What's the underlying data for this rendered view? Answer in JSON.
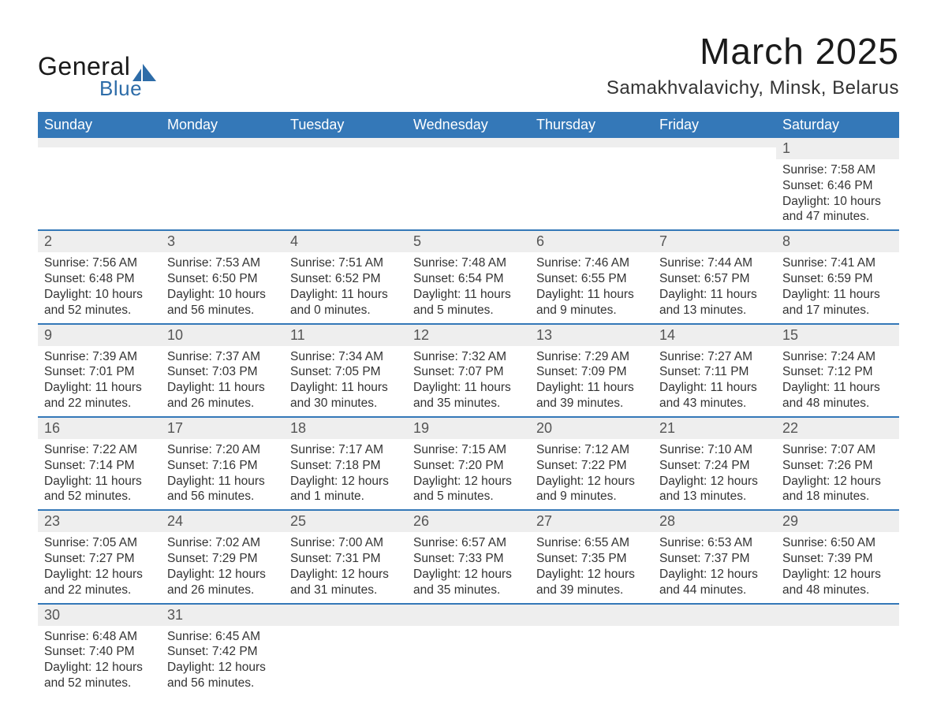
{
  "branding": {
    "word1": "General",
    "word2": "Blue",
    "accent_color": "#2d6ca8"
  },
  "header": {
    "month_title": "March 2025",
    "location": "Samakhvalavichy, Minsk, Belarus"
  },
  "calendar": {
    "type": "table",
    "columns": [
      "Sunday",
      "Monday",
      "Tuesday",
      "Wednesday",
      "Thursday",
      "Friday",
      "Saturday"
    ],
    "header_bg": "#3478b8",
    "header_text_color": "#ffffff",
    "strip_bg": "#eeeeee",
    "row_border_color": "#3478b8",
    "body_text_color": "#333333",
    "daynum_text_color": "#555555",
    "header_fontsize": 18,
    "daynum_fontsize": 18,
    "body_fontsize": 15.5,
    "weeks": [
      [
        null,
        null,
        null,
        null,
        null,
        null,
        {
          "d": "1",
          "sunrise": "Sunrise: 7:58 AM",
          "sunset": "Sunset: 6:46 PM",
          "day1": "Daylight: 10 hours",
          "day2": "and 47 minutes."
        }
      ],
      [
        {
          "d": "2",
          "sunrise": "Sunrise: 7:56 AM",
          "sunset": "Sunset: 6:48 PM",
          "day1": "Daylight: 10 hours",
          "day2": "and 52 minutes."
        },
        {
          "d": "3",
          "sunrise": "Sunrise: 7:53 AM",
          "sunset": "Sunset: 6:50 PM",
          "day1": "Daylight: 10 hours",
          "day2": "and 56 minutes."
        },
        {
          "d": "4",
          "sunrise": "Sunrise: 7:51 AM",
          "sunset": "Sunset: 6:52 PM",
          "day1": "Daylight: 11 hours",
          "day2": "and 0 minutes."
        },
        {
          "d": "5",
          "sunrise": "Sunrise: 7:48 AM",
          "sunset": "Sunset: 6:54 PM",
          "day1": "Daylight: 11 hours",
          "day2": "and 5 minutes."
        },
        {
          "d": "6",
          "sunrise": "Sunrise: 7:46 AM",
          "sunset": "Sunset: 6:55 PM",
          "day1": "Daylight: 11 hours",
          "day2": "and 9 minutes."
        },
        {
          "d": "7",
          "sunrise": "Sunrise: 7:44 AM",
          "sunset": "Sunset: 6:57 PM",
          "day1": "Daylight: 11 hours",
          "day2": "and 13 minutes."
        },
        {
          "d": "8",
          "sunrise": "Sunrise: 7:41 AM",
          "sunset": "Sunset: 6:59 PM",
          "day1": "Daylight: 11 hours",
          "day2": "and 17 minutes."
        }
      ],
      [
        {
          "d": "9",
          "sunrise": "Sunrise: 7:39 AM",
          "sunset": "Sunset: 7:01 PM",
          "day1": "Daylight: 11 hours",
          "day2": "and 22 minutes."
        },
        {
          "d": "10",
          "sunrise": "Sunrise: 7:37 AM",
          "sunset": "Sunset: 7:03 PM",
          "day1": "Daylight: 11 hours",
          "day2": "and 26 minutes."
        },
        {
          "d": "11",
          "sunrise": "Sunrise: 7:34 AM",
          "sunset": "Sunset: 7:05 PM",
          "day1": "Daylight: 11 hours",
          "day2": "and 30 minutes."
        },
        {
          "d": "12",
          "sunrise": "Sunrise: 7:32 AM",
          "sunset": "Sunset: 7:07 PM",
          "day1": "Daylight: 11 hours",
          "day2": "and 35 minutes."
        },
        {
          "d": "13",
          "sunrise": "Sunrise: 7:29 AM",
          "sunset": "Sunset: 7:09 PM",
          "day1": "Daylight: 11 hours",
          "day2": "and 39 minutes."
        },
        {
          "d": "14",
          "sunrise": "Sunrise: 7:27 AM",
          "sunset": "Sunset: 7:11 PM",
          "day1": "Daylight: 11 hours",
          "day2": "and 43 minutes."
        },
        {
          "d": "15",
          "sunrise": "Sunrise: 7:24 AM",
          "sunset": "Sunset: 7:12 PM",
          "day1": "Daylight: 11 hours",
          "day2": "and 48 minutes."
        }
      ],
      [
        {
          "d": "16",
          "sunrise": "Sunrise: 7:22 AM",
          "sunset": "Sunset: 7:14 PM",
          "day1": "Daylight: 11 hours",
          "day2": "and 52 minutes."
        },
        {
          "d": "17",
          "sunrise": "Sunrise: 7:20 AM",
          "sunset": "Sunset: 7:16 PM",
          "day1": "Daylight: 11 hours",
          "day2": "and 56 minutes."
        },
        {
          "d": "18",
          "sunrise": "Sunrise: 7:17 AM",
          "sunset": "Sunset: 7:18 PM",
          "day1": "Daylight: 12 hours",
          "day2": "and 1 minute."
        },
        {
          "d": "19",
          "sunrise": "Sunrise: 7:15 AM",
          "sunset": "Sunset: 7:20 PM",
          "day1": "Daylight: 12 hours",
          "day2": "and 5 minutes."
        },
        {
          "d": "20",
          "sunrise": "Sunrise: 7:12 AM",
          "sunset": "Sunset: 7:22 PM",
          "day1": "Daylight: 12 hours",
          "day2": "and 9 minutes."
        },
        {
          "d": "21",
          "sunrise": "Sunrise: 7:10 AM",
          "sunset": "Sunset: 7:24 PM",
          "day1": "Daylight: 12 hours",
          "day2": "and 13 minutes."
        },
        {
          "d": "22",
          "sunrise": "Sunrise: 7:07 AM",
          "sunset": "Sunset: 7:26 PM",
          "day1": "Daylight: 12 hours",
          "day2": "and 18 minutes."
        }
      ],
      [
        {
          "d": "23",
          "sunrise": "Sunrise: 7:05 AM",
          "sunset": "Sunset: 7:27 PM",
          "day1": "Daylight: 12 hours",
          "day2": "and 22 minutes."
        },
        {
          "d": "24",
          "sunrise": "Sunrise: 7:02 AM",
          "sunset": "Sunset: 7:29 PM",
          "day1": "Daylight: 12 hours",
          "day2": "and 26 minutes."
        },
        {
          "d": "25",
          "sunrise": "Sunrise: 7:00 AM",
          "sunset": "Sunset: 7:31 PM",
          "day1": "Daylight: 12 hours",
          "day2": "and 31 minutes."
        },
        {
          "d": "26",
          "sunrise": "Sunrise: 6:57 AM",
          "sunset": "Sunset: 7:33 PM",
          "day1": "Daylight: 12 hours",
          "day2": "and 35 minutes."
        },
        {
          "d": "27",
          "sunrise": "Sunrise: 6:55 AM",
          "sunset": "Sunset: 7:35 PM",
          "day1": "Daylight: 12 hours",
          "day2": "and 39 minutes."
        },
        {
          "d": "28",
          "sunrise": "Sunrise: 6:53 AM",
          "sunset": "Sunset: 7:37 PM",
          "day1": "Daylight: 12 hours",
          "day2": "and 44 minutes."
        },
        {
          "d": "29",
          "sunrise": "Sunrise: 6:50 AM",
          "sunset": "Sunset: 7:39 PM",
          "day1": "Daylight: 12 hours",
          "day2": "and 48 minutes."
        }
      ],
      [
        {
          "d": "30",
          "sunrise": "Sunrise: 6:48 AM",
          "sunset": "Sunset: 7:40 PM",
          "day1": "Daylight: 12 hours",
          "day2": "and 52 minutes."
        },
        {
          "d": "31",
          "sunrise": "Sunrise: 6:45 AM",
          "sunset": "Sunset: 7:42 PM",
          "day1": "Daylight: 12 hours",
          "day2": "and 56 minutes."
        },
        null,
        null,
        null,
        null,
        null
      ]
    ]
  }
}
